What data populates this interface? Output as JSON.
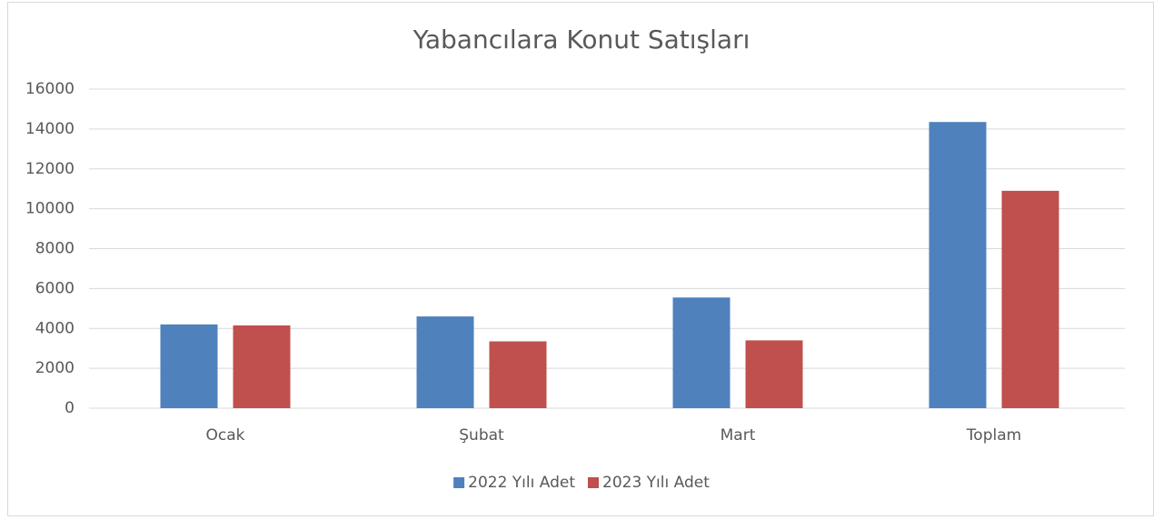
{
  "chart_data": {
    "type": "bar",
    "title": "Yabancılara Konut Satışları",
    "categories": [
      "Ocak",
      "Şubat",
      "Mart",
      "Toplam"
    ],
    "series": [
      {
        "name": "2022 Yılı Adet",
        "color": "#4f81bd",
        "values": [
          4200,
          4600,
          5550,
          14350
        ]
      },
      {
        "name": "2023 Yılı Adet",
        "color": "#c0504d",
        "values": [
          4150,
          3350,
          3400,
          10900
        ]
      }
    ],
    "ylim": [
      0,
      16000
    ],
    "yticks": [
      0,
      2000,
      4000,
      6000,
      8000,
      10000,
      12000,
      14000,
      16000
    ],
    "grid": true,
    "legend": "bottom"
  }
}
